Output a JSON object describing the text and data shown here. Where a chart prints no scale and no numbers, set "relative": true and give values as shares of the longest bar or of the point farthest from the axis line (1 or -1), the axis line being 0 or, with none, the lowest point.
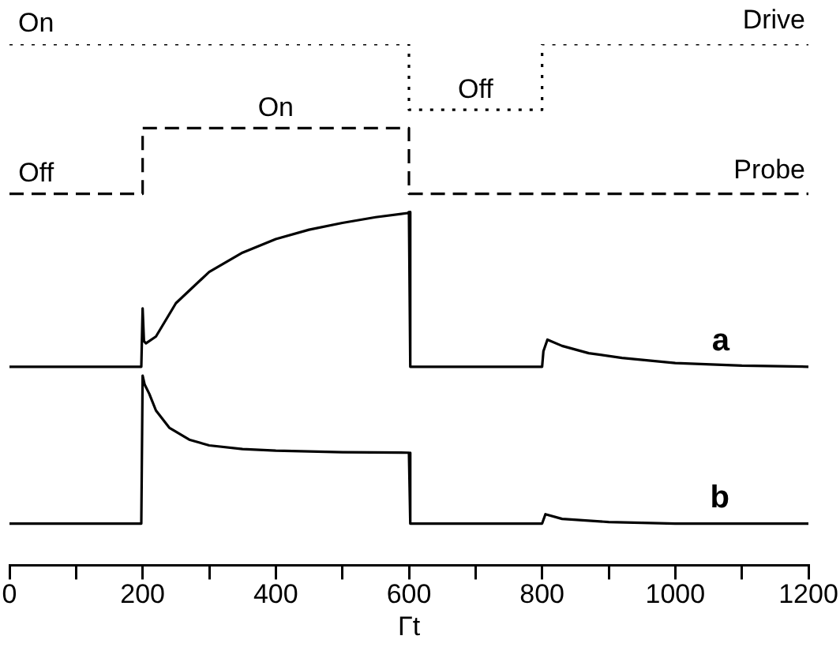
{
  "chart_data": {
    "type": "line",
    "relative": true,
    "xlabel": "Γt",
    "xlim": [
      0,
      1200
    ],
    "xticks": [
      0,
      {
        "value": 100,
        "label": null
      },
      200,
      {
        "value": 300,
        "label": null
      },
      400,
      {
        "value": 500,
        "label": null
      },
      600,
      {
        "value": 700,
        "label": null
      },
      800,
      {
        "value": 900,
        "label": null
      },
      1000,
      {
        "value": 1100,
        "label": null
      },
      1200
    ],
    "tick_labels": "x",
    "grid": false,
    "legend": false,
    "marker": "none",
    "annotations": [
      {
        "text": "On",
        "x": 40,
        "y": 1
      },
      {
        "text": "Off",
        "x": 700,
        "y": 0.874
      },
      {
        "text": "On",
        "x": 400,
        "y": 0.839
      },
      {
        "text": "Off",
        "x": 40,
        "y": 0.713
      }
    ],
    "series": [
      {
        "name": "Drive",
        "color": "#000000",
        "line_style": "dotted",
        "x": [
          0,
          600,
          600,
          800,
          800,
          1200
        ],
        "values": [
          1,
          1,
          0.874,
          0.874,
          1,
          1
        ]
      },
      {
        "name": "Probe",
        "color": "#000000",
        "line_style": "dashed",
        "x": [
          0,
          200,
          200,
          600,
          600,
          1200
        ],
        "values": [
          0.713,
          0.713,
          0.839,
          0.839,
          0.713,
          0.713
        ]
      },
      {
        "name": "a",
        "color": "#000000",
        "line_style": "solid",
        "x": [
          0,
          198,
          200,
          202,
          205,
          220,
          250,
          300,
          350,
          400,
          450,
          500,
          550,
          598,
          600,
          602,
          800,
          802,
          808,
          830,
          870,
          920,
          1000,
          1100,
          1200
        ],
        "values": [
          0.381,
          0.381,
          0.493,
          0.43,
          0.426,
          0.439,
          0.503,
          0.563,
          0.6,
          0.626,
          0.644,
          0.657,
          0.668,
          0.676,
          0.678,
          0.381,
          0.381,
          0.411,
          0.433,
          0.421,
          0.407,
          0.398,
          0.388,
          0.383,
          0.381
        ]
      },
      {
        "name": "b",
        "color": "#000000",
        "line_style": "solid",
        "x": [
          0,
          198,
          200,
          203,
          210,
          220,
          240,
          270,
          300,
          350,
          400,
          500,
          598,
          600,
          602,
          800,
          805,
          830,
          900,
          1000,
          1200
        ],
        "values": [
          0.08,
          0.08,
          0.364,
          0.347,
          0.329,
          0.297,
          0.264,
          0.241,
          0.23,
          0.223,
          0.22,
          0.217,
          0.216,
          0.216,
          0.08,
          0.08,
          0.098,
          0.089,
          0.083,
          0.08,
          0.08
        ]
      }
    ]
  }
}
